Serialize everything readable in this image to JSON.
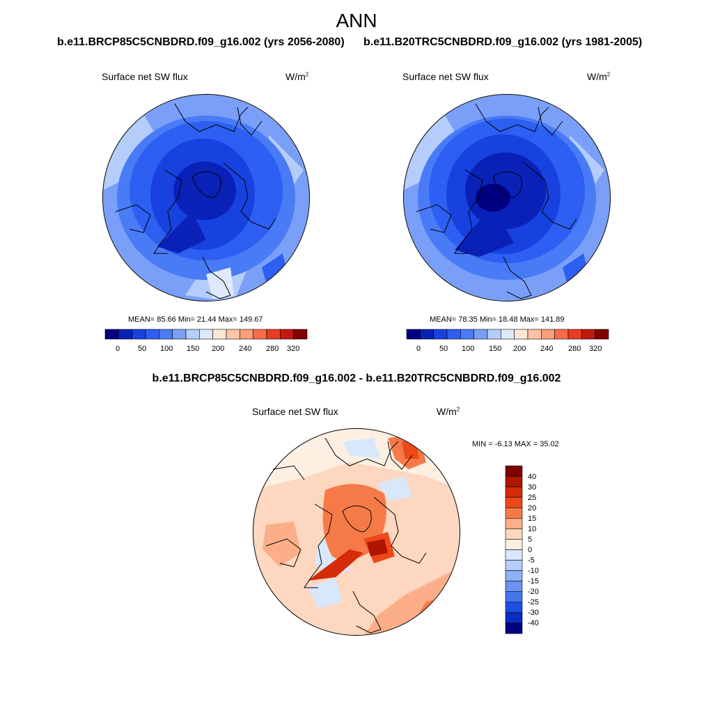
{
  "title": "ANN",
  "panels": [
    {
      "case": "b.e11.BRCP85C5CNBDRD.f09_g16.002 (yrs 2056-2080)",
      "variable": "Surface net SW flux",
      "units_base": "W/m",
      "units_exp": "2",
      "stats": "MEAN=  85.66  Min=  21.44  Max= 149.67",
      "colorbar_ticks": [
        "0",
        "50",
        "100",
        "150",
        "200",
        "240",
        "280",
        "320"
      ]
    },
    {
      "case": "b.e11.B20TRC5CNBDRD.f09_g16.002 (yrs 1981-2005)",
      "variable": "Surface net SW flux",
      "units_base": "W/m",
      "units_exp": "2",
      "stats": "MEAN=  78.35  Min=  18.48  Max= 141.89",
      "colorbar_ticks": [
        "0",
        "50",
        "100",
        "150",
        "200",
        "240",
        "280",
        "320"
      ]
    }
  ],
  "difference": {
    "title": "b.e11.BRCP85C5CNBDRD.f09_g16.002 - b.e11.B20TRC5CNBDRD.f09_g16.002",
    "variable": "Surface net SW flux",
    "units_base": "W/m",
    "units_exp": "2",
    "stats": "MIN =  -6.13 MAX =  35.02",
    "colorbar_ticks": [
      "40",
      "30",
      "25",
      "20",
      "15",
      "10",
      "5",
      "0",
      "-5",
      "-10",
      "-15",
      "-20",
      "-25",
      "-30",
      "-40"
    ]
  },
  "palettes": {
    "abs": [
      "#000080",
      "#0a21b8",
      "#1742e0",
      "#2c5ff2",
      "#4a7bf7",
      "#7a9ff9",
      "#b5cdfa",
      "#deeafc",
      "#fde6d4",
      "#fdc5a5",
      "#fc9e7a",
      "#f86c4b",
      "#e83c22",
      "#c0190f",
      "#820000"
    ],
    "diff": [
      "#800000",
      "#b01500",
      "#d42b0b",
      "#ee4818",
      "#f67a48",
      "#fbae88",
      "#fdd7bf",
      "#fdf0e3",
      "#d9e7fa",
      "#b5cdfa",
      "#8eb0f6",
      "#6a93f2",
      "#4575ed",
      "#1d4ee3",
      "#0a2bc0",
      "#000080"
    ]
  }
}
